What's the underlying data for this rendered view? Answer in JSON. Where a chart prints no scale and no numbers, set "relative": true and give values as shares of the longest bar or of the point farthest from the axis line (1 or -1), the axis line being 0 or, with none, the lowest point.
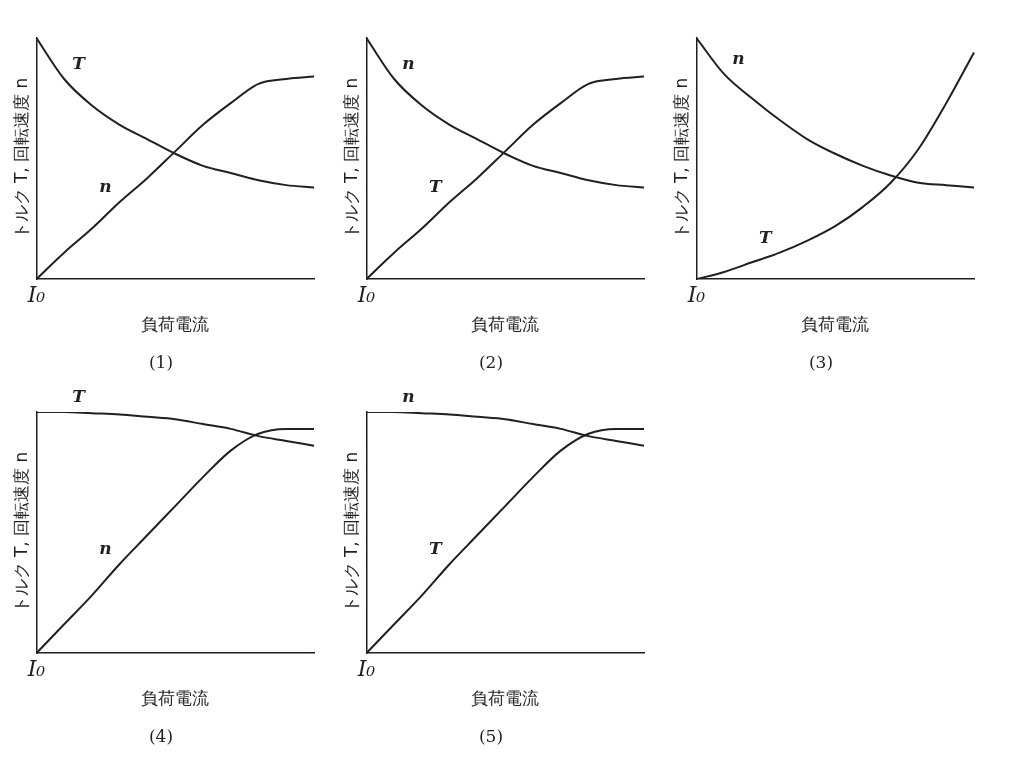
{
  "chart_data": [
    {
      "type": "line",
      "title": "(1)",
      "xlabel": "負荷電流",
      "ylabel": "トルク T, 回転速度 n",
      "annotations": [
        "I₀"
      ],
      "relative": true,
      "legend": false,
      "grid": false,
      "marker": "none",
      "categories": [
        null,
        null,
        null,
        null,
        null,
        null,
        null,
        null,
        null,
        null,
        null
      ],
      "series": [
        {
          "name": "T",
          "color": "#231f20",
          "values": [
            1,
            0.83,
            0.72,
            0.64,
            0.58,
            0.52,
            0.47,
            0.44,
            0.41,
            0.39,
            0.38
          ]
        },
        {
          "name": "n",
          "color": "#231f20",
          "values": [
            0,
            0.11,
            0.21,
            0.32,
            0.42,
            0.53,
            0.64,
            0.73,
            0.81,
            0.83,
            0.84
          ]
        }
      ]
    },
    {
      "type": "line",
      "title": "(2)",
      "xlabel": "負荷電流",
      "ylabel": "トルク T, 回転速度 n",
      "annotations": [
        "I₀"
      ],
      "relative": true,
      "legend": false,
      "grid": false,
      "marker": "none",
      "categories": [
        null,
        null,
        null,
        null,
        null,
        null,
        null,
        null,
        null,
        null,
        null
      ],
      "series": [
        {
          "name": "n",
          "color": "#231f20",
          "values": [
            1,
            0.83,
            0.72,
            0.64,
            0.58,
            0.52,
            0.47,
            0.44,
            0.41,
            0.39,
            0.38
          ]
        },
        {
          "name": "T",
          "color": "#231f20",
          "values": [
            0,
            0.11,
            0.21,
            0.32,
            0.42,
            0.53,
            0.64,
            0.73,
            0.81,
            0.83,
            0.84
          ]
        }
      ]
    },
    {
      "type": "line",
      "title": "(3)",
      "xlabel": "負荷電流",
      "ylabel": "トルク T, 回転速度 n",
      "annotations": [
        "I₀"
      ],
      "relative": true,
      "legend": false,
      "grid": false,
      "marker": "none",
      "categories": [
        null,
        null,
        null,
        null,
        null,
        null,
        null,
        null,
        null,
        null,
        null
      ],
      "series": [
        {
          "name": "n",
          "color": "#231f20",
          "values": [
            1,
            0.85,
            0.75,
            0.66,
            0.58,
            0.52,
            0.47,
            0.43,
            0.4,
            0.39,
            0.38
          ]
        },
        {
          "name": "T",
          "color": "#231f20",
          "values": [
            0,
            0.03,
            0.07,
            0.11,
            0.16,
            0.22,
            0.3,
            0.4,
            0.54,
            0.73,
            0.94
          ]
        }
      ]
    },
    {
      "type": "line",
      "title": "(4)",
      "xlabel": "負荷電流",
      "ylabel": "トルク T, 回転速度 n",
      "annotations": [
        "I₀"
      ],
      "relative": true,
      "legend": false,
      "grid": false,
      "marker": "none",
      "categories": [
        null,
        null,
        null,
        null,
        null,
        null,
        null,
        null,
        null,
        null,
        null
      ],
      "series": [
        {
          "name": "T",
          "color": "#231f20",
          "values": [
            1,
            1,
            0.995,
            0.99,
            0.98,
            0.97,
            0.95,
            0.93,
            0.9,
            0.88,
            0.86
          ]
        },
        {
          "name": "n",
          "color": "#231f20",
          "values": [
            0,
            0.12,
            0.24,
            0.37,
            0.49,
            0.61,
            0.73,
            0.84,
            0.91,
            0.93,
            0.93
          ]
        }
      ]
    },
    {
      "type": "line",
      "title": "(5)",
      "xlabel": "負荷電流",
      "ylabel": "トルク T, 回転速度 n",
      "annotations": [
        "I₀"
      ],
      "relative": true,
      "legend": false,
      "grid": false,
      "marker": "none",
      "categories": [
        null,
        null,
        null,
        null,
        null,
        null,
        null,
        null,
        null,
        null,
        null
      ],
      "series": [
        {
          "name": "n",
          "color": "#231f20",
          "values": [
            1,
            1,
            0.995,
            0.99,
            0.98,
            0.97,
            0.95,
            0.93,
            0.9,
            0.88,
            0.86
          ]
        },
        {
          "name": "T",
          "color": "#231f20",
          "values": [
            0,
            0.12,
            0.24,
            0.37,
            0.49,
            0.61,
            0.73,
            0.84,
            0.91,
            0.93,
            0.93
          ]
        }
      ]
    }
  ]
}
